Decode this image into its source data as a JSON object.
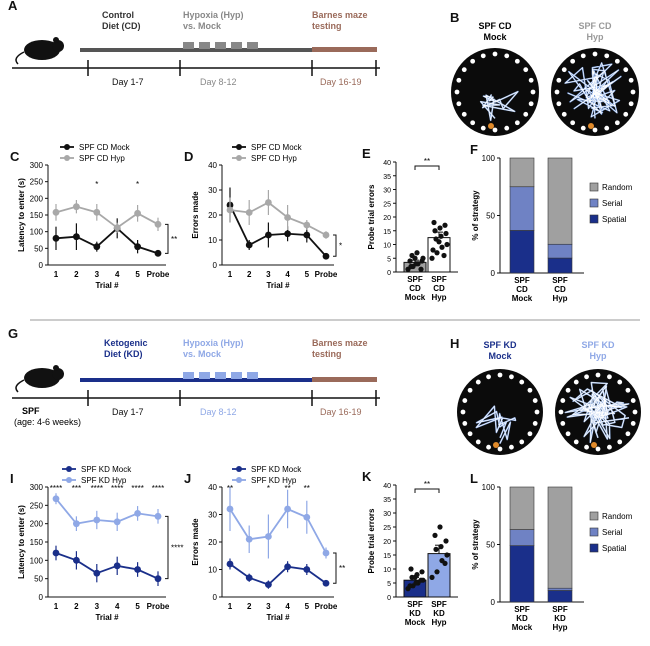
{
  "colors": {
    "black": "#111111",
    "grey": "#a8a8a8",
    "navy": "#1a2f8a",
    "light_blue": "#8fa8e6",
    "bar_grey": "#a0a0a0",
    "brown": "#9a6a5a",
    "random": "#a0a0a0",
    "serial": "#6f82c4",
    "spatial": "#1a2f8a",
    "arena_bg": "#0b0b0b"
  },
  "panels": {
    "A": {
      "label": "A",
      "phase1": "Control\nDiet (CD)",
      "phase2": "Hypoxia (Hyp)\nvs. Mock",
      "phase3": "Barnes maze\ntesting",
      "days": [
        "Day 1-7",
        "Day 8-12",
        "Day 16-19"
      ]
    },
    "B": {
      "label": "B",
      "arena1": "SPF CD\nMock",
      "arena2": "SPF CD\nHyp"
    },
    "G": {
      "label": "G",
      "phase1": "Ketogenic\nDiet (KD)",
      "phase2": "Hypoxia (Hyp)\nvs. Mock",
      "phase3": "Barnes maze\ntesting",
      "days": [
        "Day 1-7",
        "Day 8-12",
        "Day 16-19"
      ],
      "origin": "SPF",
      "age": "(age: 4-6 weeks)"
    },
    "H": {
      "label": "H",
      "arena1": "SPF KD\nMock",
      "arena2": "SPF KD\nHyp"
    },
    "F": {
      "label": "F"
    },
    "L": {
      "label": "L"
    }
  },
  "chart_data": [
    {
      "id": "C",
      "type": "line",
      "ylabel": "Latency to enter (s)",
      "xlabel": "Trial #",
      "categories": [
        "1",
        "2",
        "3",
        "4",
        "5",
        "Probe"
      ],
      "ylim": [
        0,
        300
      ],
      "yticks": [
        0,
        50,
        100,
        150,
        200,
        250,
        300
      ],
      "series": [
        {
          "name": "SPF CD Mock",
          "values": [
            80,
            85,
            55,
            110,
            55,
            35
          ],
          "err": [
            35,
            40,
            15,
            30,
            20,
            5
          ],
          "color": "#111111"
        },
        {
          "name": "SPF CD Hyp",
          "values": [
            158,
            175,
            158,
            112,
            155,
            122
          ],
          "err": [
            25,
            20,
            25,
            15,
            25,
            20
          ],
          "color": "#a8a8a8"
        }
      ],
      "marks": [
        "*",
        "*"
      ],
      "mark_idx": [
        2,
        4
      ],
      "bracket": "**"
    },
    {
      "id": "D",
      "type": "line",
      "ylabel": "Errors made",
      "xlabel": "Trial #",
      "categories": [
        "1",
        "2",
        "3",
        "4",
        "5",
        "Probe"
      ],
      "ylim": [
        0,
        40
      ],
      "yticks": [
        0,
        10,
        20,
        30,
        40
      ],
      "series": [
        {
          "name": "SPF CD Mock",
          "values": [
            24,
            8,
            12,
            12.5,
            12,
            3.5
          ],
          "err": [
            7,
            2,
            5,
            3,
            3,
            1
          ],
          "color": "#111111"
        },
        {
          "name": "SPF CD Hyp",
          "values": [
            22,
            21,
            25,
            19,
            16,
            12
          ],
          "err": [
            5,
            5,
            5,
            5,
            2,
            1.5
          ],
          "color": "#a8a8a8"
        }
      ],
      "bracket": "*"
    },
    {
      "id": "E",
      "type": "bar",
      "ylabel": "Probe trial errors",
      "categories": [
        "SPF\nCD\nMock",
        "SPF\nCD\nHyp"
      ],
      "ylim": [
        0,
        40
      ],
      "yticks": [
        0,
        5,
        10,
        15,
        20,
        25,
        30,
        35,
        40
      ],
      "values": [
        3.5,
        12.5
      ],
      "err": [
        0.8,
        2
      ],
      "colors": [
        "#a0a0a0",
        "#ffffff"
      ],
      "sig": "**",
      "points": [
        [
          1,
          2,
          3,
          5,
          6,
          7,
          4,
          2,
          3,
          1,
          4,
          5
        ],
        [
          5,
          7,
          9,
          10,
          12,
          13,
          14,
          15,
          16,
          17,
          18,
          11,
          6,
          8
        ]
      ]
    },
    {
      "id": "F",
      "type": "bar",
      "ylabel": "% of strategy",
      "categories": [
        "SPF\nCD\nMock",
        "SPF\nCD\nHyp"
      ],
      "ylim": [
        0,
        100
      ],
      "yticks": [
        0,
        50,
        100
      ],
      "stacked": [
        {
          "name": "Random",
          "values": [
            25,
            75
          ]
        },
        {
          "name": "Serial",
          "values": [
            38,
            12
          ]
        },
        {
          "name": "Spatial",
          "values": [
            37,
            13
          ]
        }
      ]
    },
    {
      "id": "I",
      "type": "line",
      "ylabel": "Latency to enter (s)",
      "xlabel": "Trial #",
      "categories": [
        "1",
        "2",
        "3",
        "4",
        "5",
        "Probe"
      ],
      "ylim": [
        0,
        300
      ],
      "yticks": [
        0,
        50,
        100,
        150,
        200,
        250,
        300
      ],
      "series": [
        {
          "name": "SPF KD Mock",
          "values": [
            120,
            100,
            65,
            85,
            75,
            50
          ],
          "err": [
            20,
            25,
            25,
            25,
            20,
            20
          ],
          "color": "#1a2f8a"
        },
        {
          "name": "SPF KD Hyp",
          "values": [
            268,
            200,
            210,
            205,
            228,
            220
          ],
          "err": [
            15,
            20,
            25,
            25,
            20,
            20
          ],
          "color": "#8fa8e6"
        }
      ],
      "marks": [
        "****",
        "***",
        "****",
        "****",
        "****",
        "****"
      ],
      "bracket": "****"
    },
    {
      "id": "J",
      "type": "line",
      "ylabel": "Errors made",
      "xlabel": "Trial #",
      "categories": [
        "1",
        "2",
        "3",
        "4",
        "5",
        "Probe"
      ],
      "ylim": [
        0,
        40
      ],
      "yticks": [
        0,
        10,
        20,
        30,
        40
      ],
      "series": [
        {
          "name": "SPF KD Mock",
          "values": [
            12,
            7,
            4.5,
            11,
            10,
            5
          ],
          "err": [
            2,
            1.5,
            1.5,
            2,
            2,
            1
          ],
          "color": "#1a2f8a"
        },
        {
          "name": "SPF KD Hyp",
          "values": [
            32,
            21,
            22,
            32,
            29,
            16
          ],
          "err": [
            8,
            5,
            8,
            7,
            6,
            2
          ],
          "color": "#8fa8e6"
        }
      ],
      "marks": [
        "**",
        "",
        "*",
        "**",
        "**",
        ""
      ],
      "bracket": "**"
    },
    {
      "id": "K",
      "type": "bar",
      "ylabel": "Probe trial errors",
      "categories": [
        "SPF\nKD\nMock",
        "SPF\nKD\nHyp"
      ],
      "ylim": [
        0,
        40
      ],
      "yticks": [
        0,
        5,
        10,
        15,
        20,
        25,
        30,
        35,
        40
      ],
      "values": [
        6,
        15.5
      ],
      "err": [
        1,
        3
      ],
      "colors": [
        "#1a2f8a",
        "#8fa8e6"
      ],
      "sig": "**",
      "points": [
        [
          3,
          4,
          5,
          6,
          7,
          8,
          9,
          10,
          5,
          6,
          4,
          7
        ],
        [
          7,
          9,
          13,
          15,
          17,
          18,
          20,
          22,
          25,
          12
        ]
      ]
    },
    {
      "id": "L",
      "type": "bar",
      "ylabel": "% of strategy",
      "categories": [
        "SPF\nKD\nMock",
        "SPF\nKD\nHyp"
      ],
      "ylim": [
        0,
        100
      ],
      "yticks": [
        0,
        50,
        100
      ],
      "stacked": [
        {
          "name": "Random",
          "values": [
            37,
            88
          ]
        },
        {
          "name": "Serial",
          "values": [
            14,
            2
          ]
        },
        {
          "name": "Spatial",
          "values": [
            49,
            10
          ]
        }
      ]
    }
  ]
}
